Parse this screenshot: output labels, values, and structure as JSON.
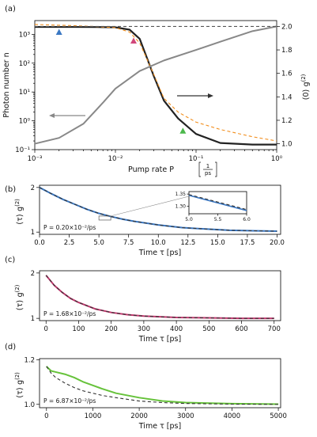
{
  "chart_data": [
    {
      "panel": "(a)",
      "type": "line",
      "xscale": "log",
      "yscale_left": "log",
      "xlabel": "Pump rate P",
      "xlabel_unit_num": "1",
      "xlabel_unit_den": "ps",
      "ylabel_left": "Photon number n",
      "ylabel_right": "g(2)(0)",
      "xlim": [
        0.001,
        1
      ],
      "ylim_left": [
        0.1,
        3000
      ],
      "ylim_right": [
        0.95,
        2.05
      ],
      "x_ticks": [
        "10⁻³",
        "10⁻²",
        "10⁻¹",
        "10⁰"
      ],
      "y_ticks_left": [
        "10⁻¹",
        "10⁰",
        "10¹",
        "10²",
        "10³"
      ],
      "y_ticks_right": [
        "1.0",
        "1.2",
        "1.4",
        "1.6",
        "1.8",
        "2.0"
      ],
      "series": [
        {
          "axis": "left",
          "color": "#222222",
          "style": "solid",
          "x": [
            0.001,
            0.003,
            0.006,
            0.01,
            0.015,
            0.02,
            0.03,
            0.04,
            0.06,
            0.1,
            0.2,
            0.5,
            1
          ],
          "y": [
            1800,
            1800,
            1790,
            1750,
            1450,
            700,
            35,
            5,
            1.2,
            0.35,
            0.17,
            0.15,
            0.15
          ]
        },
        {
          "axis": "left",
          "color": "#f28e1c",
          "style": "dashed",
          "x": [
            0.001,
            0.003,
            0.006,
            0.01,
            0.015,
            0.02,
            0.03,
            0.04,
            0.06,
            0.1,
            0.2,
            0.5,
            1
          ],
          "y": [
            2200,
            2000,
            1850,
            1700,
            1200,
            500,
            40,
            6,
            2,
            0.9,
            0.5,
            0.28,
            0.2
          ]
        },
        {
          "axis": "right",
          "color": "#888888",
          "style": "solid",
          "x": [
            0.001,
            0.002,
            0.004,
            0.007,
            0.01,
            0.02,
            0.04,
            0.1,
            0.2,
            0.5,
            1
          ],
          "y": [
            1.0,
            1.05,
            1.17,
            1.35,
            1.47,
            1.62,
            1.71,
            1.8,
            1.87,
            1.96,
            2.0
          ]
        },
        {
          "axis": "right",
          "color": "#555555",
          "style": "dashed",
          "x": [
            0.001,
            1
          ],
          "y": [
            2.0,
            2.0
          ]
        }
      ],
      "markers": [
        {
          "x": 0.002,
          "y": 1200,
          "color": "#3b78c3"
        },
        {
          "x": 0.0168,
          "y": 600,
          "color": "#d1477a"
        },
        {
          "x": 0.0687,
          "y": 0.45,
          "color": "#4cb84c"
        }
      ]
    },
    {
      "panel": "(b)",
      "type": "line",
      "xlabel": "Time τ [ps]",
      "ylabel": "g(2)(τ)",
      "xlim": [
        0,
        20.3
      ],
      "ylim": [
        0.95,
        2.05
      ],
      "x_ticks": [
        "0.0",
        "2.5",
        "5.0",
        "7.5",
        "10.0",
        "12.5",
        "15.0",
        "17.5",
        "20.0"
      ],
      "y_ticks": [
        "1",
        "2"
      ],
      "annotation": "P = 0.20×10⁻²/ps",
      "series": [
        {
          "color": "#3b78c3",
          "style": "solid",
          "x": [
            0,
            1,
            2,
            3,
            4,
            5,
            6,
            7,
            8,
            10,
            12,
            14,
            16,
            18,
            20
          ],
          "y": [
            2.0,
            1.86,
            1.73,
            1.62,
            1.51,
            1.42,
            1.35,
            1.29,
            1.24,
            1.16,
            1.1,
            1.07,
            1.04,
            1.03,
            1.02
          ]
        },
        {
          "color": "#333333",
          "style": "dashed",
          "x": [
            0,
            1,
            2,
            3,
            4,
            5,
            6,
            7,
            8,
            10,
            12,
            14,
            16,
            18,
            20
          ],
          "y": [
            2.0,
            1.86,
            1.73,
            1.62,
            1.51,
            1.42,
            1.35,
            1.29,
            1.24,
            1.16,
            1.1,
            1.07,
            1.04,
            1.03,
            1.02
          ]
        }
      ],
      "inset": {
        "xlim": [
          5.0,
          6.0
        ],
        "ylim": [
          1.27,
          1.36
        ],
        "x_ticks": [
          "5.0",
          "5.5",
          "6.0"
        ],
        "y_ticks": [
          "1.30",
          "1.35"
        ],
        "series": [
          {
            "color": "#3b78c3",
            "style": "solid",
            "x": [
              5.0,
              6.0
            ],
            "y": [
              1.345,
              1.283
            ]
          },
          {
            "color": "#333333",
            "style": "dashed",
            "x": [
              5.0,
              6.0
            ],
            "y": [
              1.348,
              1.287
            ]
          }
        ]
      }
    },
    {
      "panel": "(c)",
      "type": "line",
      "xlabel": "Time τ [ps]",
      "ylabel": "g(2)(τ)",
      "xlim": [
        -20,
        720
      ],
      "ylim": [
        0.95,
        2.05
      ],
      "x_ticks": [
        "0",
        "100",
        "200",
        "300",
        "400",
        "500",
        "600",
        "700"
      ],
      "y_ticks": [
        "1",
        "2"
      ],
      "annotation": "P = 1.68×10⁻²/ps",
      "series": [
        {
          "color": "#c2386f",
          "style": "solid",
          "x": [
            0,
            25,
            50,
            75,
            100,
            150,
            200,
            250,
            300,
            400,
            500,
            600,
            700
          ],
          "y": [
            1.95,
            1.73,
            1.57,
            1.44,
            1.35,
            1.21,
            1.13,
            1.08,
            1.05,
            1.02,
            1.01,
            1.0,
            1.0
          ]
        },
        {
          "color": "#333333",
          "style": "dashed",
          "x": [
            0,
            25,
            50,
            75,
            100,
            150,
            200,
            250,
            300,
            400,
            500,
            600,
            700
          ],
          "y": [
            1.95,
            1.73,
            1.57,
            1.44,
            1.35,
            1.21,
            1.13,
            1.08,
            1.05,
            1.02,
            1.01,
            1.0,
            1.0
          ]
        }
      ]
    },
    {
      "panel": "(d)",
      "type": "line",
      "xlabel": "Time τ [ps]",
      "ylabel": "g(2)(τ)",
      "xlim": [
        -150,
        5050
      ],
      "ylim": [
        0.985,
        1.205
      ],
      "x_ticks": [
        "0",
        "1000",
        "2000",
        "3000",
        "4000",
        "5000"
      ],
      "y_ticks": [
        "1.0",
        "1.2"
      ],
      "annotation": "P = 6.87×10⁻²/ps",
      "series": [
        {
          "color": "#66c23a",
          "style": "solid",
          "x": [
            0,
            100,
            200,
            400,
            600,
            800,
            1000,
            1200,
            1500,
            2000,
            2500,
            3000,
            4000,
            5000
          ],
          "y": [
            1.17,
            1.15,
            1.145,
            1.135,
            1.12,
            1.1,
            1.085,
            1.07,
            1.05,
            1.03,
            1.015,
            1.008,
            1.003,
            1.001
          ]
        },
        {
          "color": "#333333",
          "style": "dashed",
          "x": [
            0,
            100,
            200,
            400,
            600,
            800,
            1000,
            1200,
            1500,
            2000,
            2500,
            3000,
            4000,
            5000
          ],
          "y": [
            1.17,
            1.14,
            1.12,
            1.095,
            1.075,
            1.06,
            1.05,
            1.04,
            1.03,
            1.015,
            1.008,
            1.004,
            1.001,
            1.0
          ]
        }
      ]
    }
  ]
}
